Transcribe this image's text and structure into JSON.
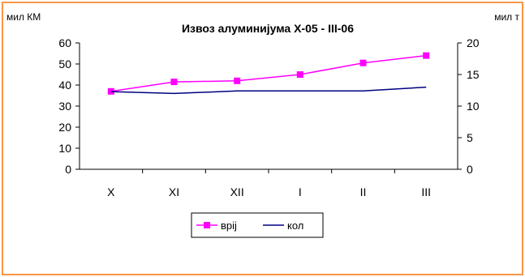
{
  "chart_data": {
    "type": "line",
    "title": "Извоз алуминијума X-05 - III-06",
    "ylabel_left": "мил КМ",
    "ylabel_right": "мил т",
    "categories": [
      "X",
      "XI",
      "XII",
      "I",
      "II",
      "III"
    ],
    "y_left": {
      "min": 0,
      "max": 60,
      "ticks": [
        0,
        10,
        20,
        30,
        40,
        50,
        60
      ]
    },
    "y_right": {
      "min": 0,
      "max": 20,
      "ticks": [
        0,
        5,
        10,
        15,
        20
      ]
    },
    "grid": false,
    "legend_position": "bottom",
    "series": [
      {
        "name": "врij",
        "axis": "left",
        "values": [
          37,
          41.5,
          42,
          45,
          50.5,
          54
        ],
        "color": "#ff00ff",
        "marker": "square"
      },
      {
        "name": "кол",
        "axis": "right",
        "values": [
          12.3,
          12,
          12.4,
          12.4,
          12.4,
          13
        ],
        "color": "#000080",
        "marker": "none"
      }
    ]
  }
}
